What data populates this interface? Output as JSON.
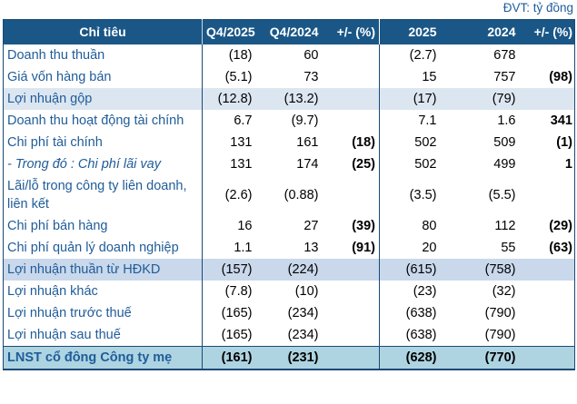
{
  "unit_label": "ĐVT: tỷ đồng",
  "colors": {
    "header-bg": "#1A5787",
    "border-navy": "#1B4A75",
    "label-text": "#1F5C99",
    "value-red": "#FF0000",
    "value-green": "#339966",
    "highlight-light": "#DCE6F1",
    "highlight-mid": "#C9D8EB",
    "highlight-total": "#AED4E2"
  },
  "table": {
    "header": {
      "label": "Chỉ tiêu",
      "cols": [
        "Q4/2025",
        "Q4/2024",
        "+/- (%)",
        "2025",
        "2024",
        "+/- (%)"
      ]
    },
    "rows": [
      {
        "label": "Doanh thu thuần",
        "cells": [
          "(18)",
          "60",
          "",
          "(2.7)",
          "678",
          ""
        ]
      },
      {
        "label": "Giá vốn hàng bán",
        "cells": [
          "(5.1)",
          "73",
          "",
          "15",
          "757",
          "(98)"
        ]
      },
      {
        "label": "Lợi nhuận gộp",
        "highlight": "light",
        "cells": [
          "(12.8)",
          "(13.2)",
          "",
          "(17)",
          "(79)",
          ""
        ]
      },
      {
        "label": "Doanh thu hoạt động tài chính",
        "cells": [
          "6.7",
          "(9.7)",
          "",
          "7.1",
          "1.6",
          "341"
        ]
      },
      {
        "label": "Chi phí tài chính",
        "cells": [
          "131",
          "161",
          "(18)",
          "502",
          "509",
          "(1)"
        ]
      },
      {
        "label": "- Trong đó : Chi phí lãi vay",
        "italic": true,
        "cells": [
          "131",
          "174",
          "(25)",
          "502",
          "499",
          "1"
        ]
      },
      {
        "label": "Lãi/lỗ trong công ty liên doanh, liên kết",
        "cells": [
          "(2.6)",
          "(0.88)",
          "",
          "(3.5)",
          "(5.5)",
          ""
        ]
      },
      {
        "label": "Chi phí bán hàng",
        "cells": [
          "16",
          "27",
          "(39)",
          "80",
          "112",
          "(29)"
        ]
      },
      {
        "label": "Chi phí quản lý doanh nghiệp",
        "cells": [
          "1.1",
          "13",
          "(91)",
          "20",
          "55",
          "(63)"
        ]
      },
      {
        "label": "Lợi nhuận thuần từ HĐKD",
        "highlight": "mid",
        "cells": [
          "(157)",
          "(224)",
          "",
          "(615)",
          "(758)",
          ""
        ]
      },
      {
        "label": "Lợi nhuận khác",
        "cells": [
          "(7.8)",
          "(10)",
          "",
          "(23)",
          "(32)",
          ""
        ]
      },
      {
        "label": "Lợi nhuận trước thuế",
        "cells": [
          "(165)",
          "(234)",
          "",
          "(638)",
          "(790)",
          ""
        ]
      },
      {
        "label": "Lợi nhuận sau thuế",
        "cells": [
          "(165)",
          "(234)",
          "",
          "(638)",
          "(790)",
          ""
        ]
      },
      {
        "label": "LNST cổ đông Công ty mẹ",
        "highlight": "total",
        "bold": true,
        "cells": [
          "(161)",
          "(231)",
          "",
          "(628)",
          "(770)",
          ""
        ]
      }
    ]
  }
}
